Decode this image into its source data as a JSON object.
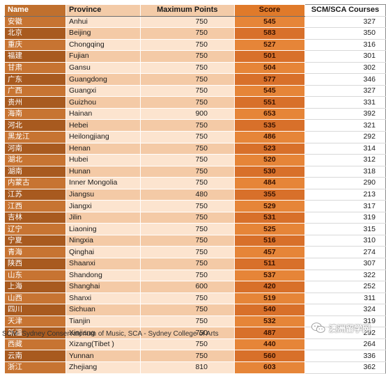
{
  "headers": {
    "name": "Name",
    "province": "Province",
    "max_points": "Maximum Points",
    "score": "Score",
    "courses": "SCM/SCA Courses"
  },
  "rows": [
    {
      "name": "安徽",
      "province": "Anhui",
      "max": "750",
      "score": "545",
      "courses": "327"
    },
    {
      "name": "北京",
      "province": "Beijing",
      "max": "750",
      "score": "583",
      "courses": "350"
    },
    {
      "name": "重庆",
      "province": "Chongqing",
      "max": "750",
      "score": "527",
      "courses": "316"
    },
    {
      "name": "福建",
      "province": "Fujian",
      "max": "750",
      "score": "501",
      "courses": "301"
    },
    {
      "name": "甘肃",
      "province": "Gansu",
      "max": "750",
      "score": "504",
      "courses": "302"
    },
    {
      "name": "广东",
      "province": "Guangdong",
      "max": "750",
      "score": "577",
      "courses": "346"
    },
    {
      "name": "广西",
      "province": "Guangxi",
      "max": "750",
      "score": "545",
      "courses": "327"
    },
    {
      "name": "贵州",
      "province": "Guizhou",
      "max": "750",
      "score": "551",
      "courses": "331"
    },
    {
      "name": "海南",
      "province": "Hainan",
      "max": "900",
      "score": "653",
      "courses": "392"
    },
    {
      "name": "河北",
      "province": "Hebei",
      "max": "750",
      "score": "535",
      "courses": "321"
    },
    {
      "name": "黑龙江",
      "province": "Heilongjiang",
      "max": "750",
      "score": "486",
      "courses": "292"
    },
    {
      "name": "河南",
      "province": "Henan",
      "max": "750",
      "score": "523",
      "courses": "314"
    },
    {
      "name": "湖北",
      "province": "Hubei",
      "max": "750",
      "score": "520",
      "courses": "312"
    },
    {
      "name": "湖南",
      "province": "Hunan",
      "max": "750",
      "score": "530",
      "courses": "318"
    },
    {
      "name": "内蒙古",
      "province": "Inner Mongolia",
      "max": "750",
      "score": "484",
      "courses": "290"
    },
    {
      "name": "江苏",
      "province": "Jiangsu",
      "max": "480",
      "score": "355",
      "courses": "213"
    },
    {
      "name": "江西",
      "province": "Jiangxi",
      "max": "750",
      "score": "529",
      "courses": "317"
    },
    {
      "name": "吉林",
      "province": "Jilin",
      "max": "750",
      "score": "531",
      "courses": "319"
    },
    {
      "name": "辽宁",
      "province": "Liaoning",
      "max": "750",
      "score": "525",
      "courses": "315"
    },
    {
      "name": "宁夏",
      "province": "Ningxia",
      "max": "750",
      "score": "516",
      "courses": "310"
    },
    {
      "name": "青海",
      "province": "Qinghai",
      "max": "750",
      "score": "457",
      "courses": "274"
    },
    {
      "name": "陕西",
      "province": "Shaanxi",
      "max": "750",
      "score": "511",
      "courses": "307"
    },
    {
      "name": "山东",
      "province": "Shandong",
      "max": "750",
      "score": "537",
      "courses": "322"
    },
    {
      "name": "上海",
      "province": "Shanghai",
      "max": "600",
      "score": "420",
      "courses": "252"
    },
    {
      "name": "山西",
      "province": "Shanxi",
      "max": "750",
      "score": "519",
      "courses": "311"
    },
    {
      "name": "四川",
      "province": "Sichuan",
      "max": "750",
      "score": "540",
      "courses": "324"
    },
    {
      "name": "天津",
      "province": "Tianjin",
      "max": "750",
      "score": "532",
      "courses": "319"
    },
    {
      "name": "新疆",
      "province": "Xinjiang",
      "max": "750",
      "score": "487",
      "courses": "292"
    },
    {
      "name": "西藏",
      "province": "Xizang(Tibet )",
      "max": "750",
      "score": "440",
      "courses": "264"
    },
    {
      "name": "云南",
      "province": "Yunnan",
      "max": "750",
      "score": "560",
      "courses": "336"
    },
    {
      "name": "浙江",
      "province": "Zhejiang",
      "max": "810",
      "score": "603",
      "courses": "362"
    }
  ],
  "footnote": "SCM- Sydney Conservatorium of Music, SCA - Sydney College of Arts",
  "watermark": {
    "text": "澳洲留学网",
    "icon": "wechat-icon"
  },
  "colors": {
    "name_col": "#c77432",
    "province_col": "#fce4cf",
    "score_col": "#e68538",
    "header_score": "#e07a2a"
  }
}
